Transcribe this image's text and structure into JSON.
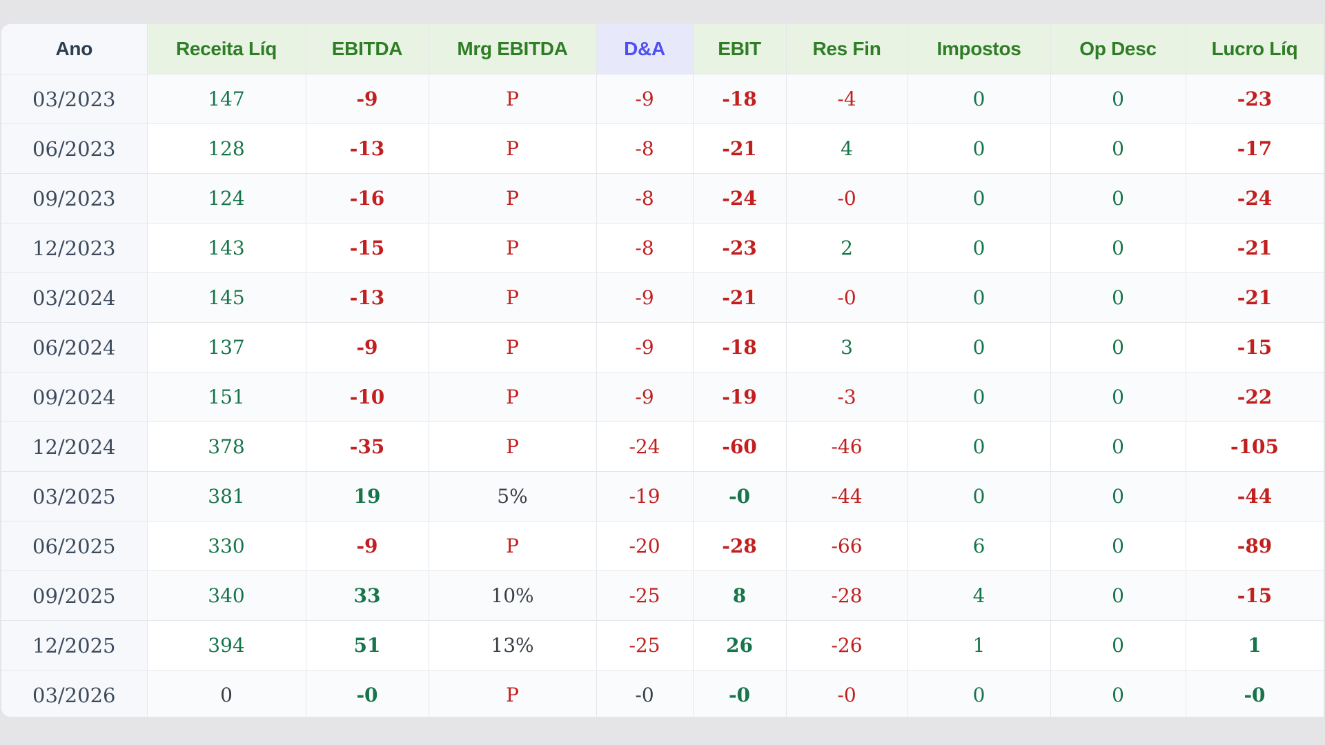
{
  "colors": {
    "positive": "#17754a",
    "negative": "#c21f1f",
    "header_green": "#2f7d25",
    "header_blue": "#4f4ff0",
    "neutral": "#3a3f47"
  },
  "columns": [
    {
      "key": "ano",
      "label": "Ano",
      "style": "plain",
      "bold": false
    },
    {
      "key": "receita",
      "label": "Receita Líq",
      "style": "sign",
      "bold": false
    },
    {
      "key": "ebitda",
      "label": "EBITDA",
      "style": "sign",
      "bold": true
    },
    {
      "key": "mrg",
      "label": "Mrg EBITDA",
      "style": "margin",
      "bold": false
    },
    {
      "key": "da",
      "label": "D&A",
      "style": "sign",
      "bold": false
    },
    {
      "key": "ebit",
      "label": "EBIT",
      "style": "sign",
      "bold": true
    },
    {
      "key": "resfin",
      "label": "Res Fin",
      "style": "sign",
      "bold": false
    },
    {
      "key": "impostos",
      "label": "Impostos",
      "style": "sign",
      "bold": false
    },
    {
      "key": "opdesc",
      "label": "Op Desc",
      "style": "sign",
      "bold": false
    },
    {
      "key": "lucro",
      "label": "Lucro Líq",
      "style": "sign",
      "bold": true
    }
  ],
  "rows": [
    [
      "03/2023",
      "147",
      "-9",
      "P",
      "-9",
      "-18",
      "-4",
      "0",
      "0",
      "-23"
    ],
    [
      "06/2023",
      "128",
      "-13",
      "P",
      "-8",
      "-21",
      "4",
      "0",
      "0",
      "-17"
    ],
    [
      "09/2023",
      "124",
      "-16",
      "P",
      "-8",
      "-24",
      "-0",
      "0",
      "0",
      "-24"
    ],
    [
      "12/2023",
      "143",
      "-15",
      "P",
      "-8",
      "-23",
      "2",
      "0",
      "0",
      "-21"
    ],
    [
      "03/2024",
      "145",
      "-13",
      "P",
      "-9",
      "-21",
      "-0",
      "0",
      "0",
      "-21"
    ],
    [
      "06/2024",
      "137",
      "-9",
      "P",
      "-9",
      "-18",
      "3",
      "0",
      "0",
      "-15"
    ],
    [
      "09/2024",
      "151",
      "-10",
      "P",
      "-9",
      "-19",
      "-3",
      "0",
      "0",
      "-22"
    ],
    [
      "12/2024",
      "378",
      "-35",
      "P",
      "-24",
      "-60",
      "-46",
      "0",
      "0",
      "-105"
    ],
    [
      "03/2025",
      "381",
      "19",
      "5%",
      "-19",
      "-0",
      "-44",
      "0",
      "0",
      "-44"
    ],
    [
      "06/2025",
      "330",
      "-9",
      "P",
      "-20",
      "-28",
      "-66",
      "6",
      "0",
      "-89"
    ],
    [
      "09/2025",
      "340",
      "33",
      "10%",
      "-25",
      "8",
      "-28",
      "4",
      "0",
      "-15"
    ],
    [
      "12/2025",
      "394",
      "51",
      "13%",
      "-25",
      "26",
      "-26",
      "1",
      "0",
      "1"
    ],
    [
      "03/2026",
      "0",
      "-0",
      "P",
      "-0",
      "-0",
      "-0",
      "0",
      "0",
      "-0"
    ]
  ]
}
